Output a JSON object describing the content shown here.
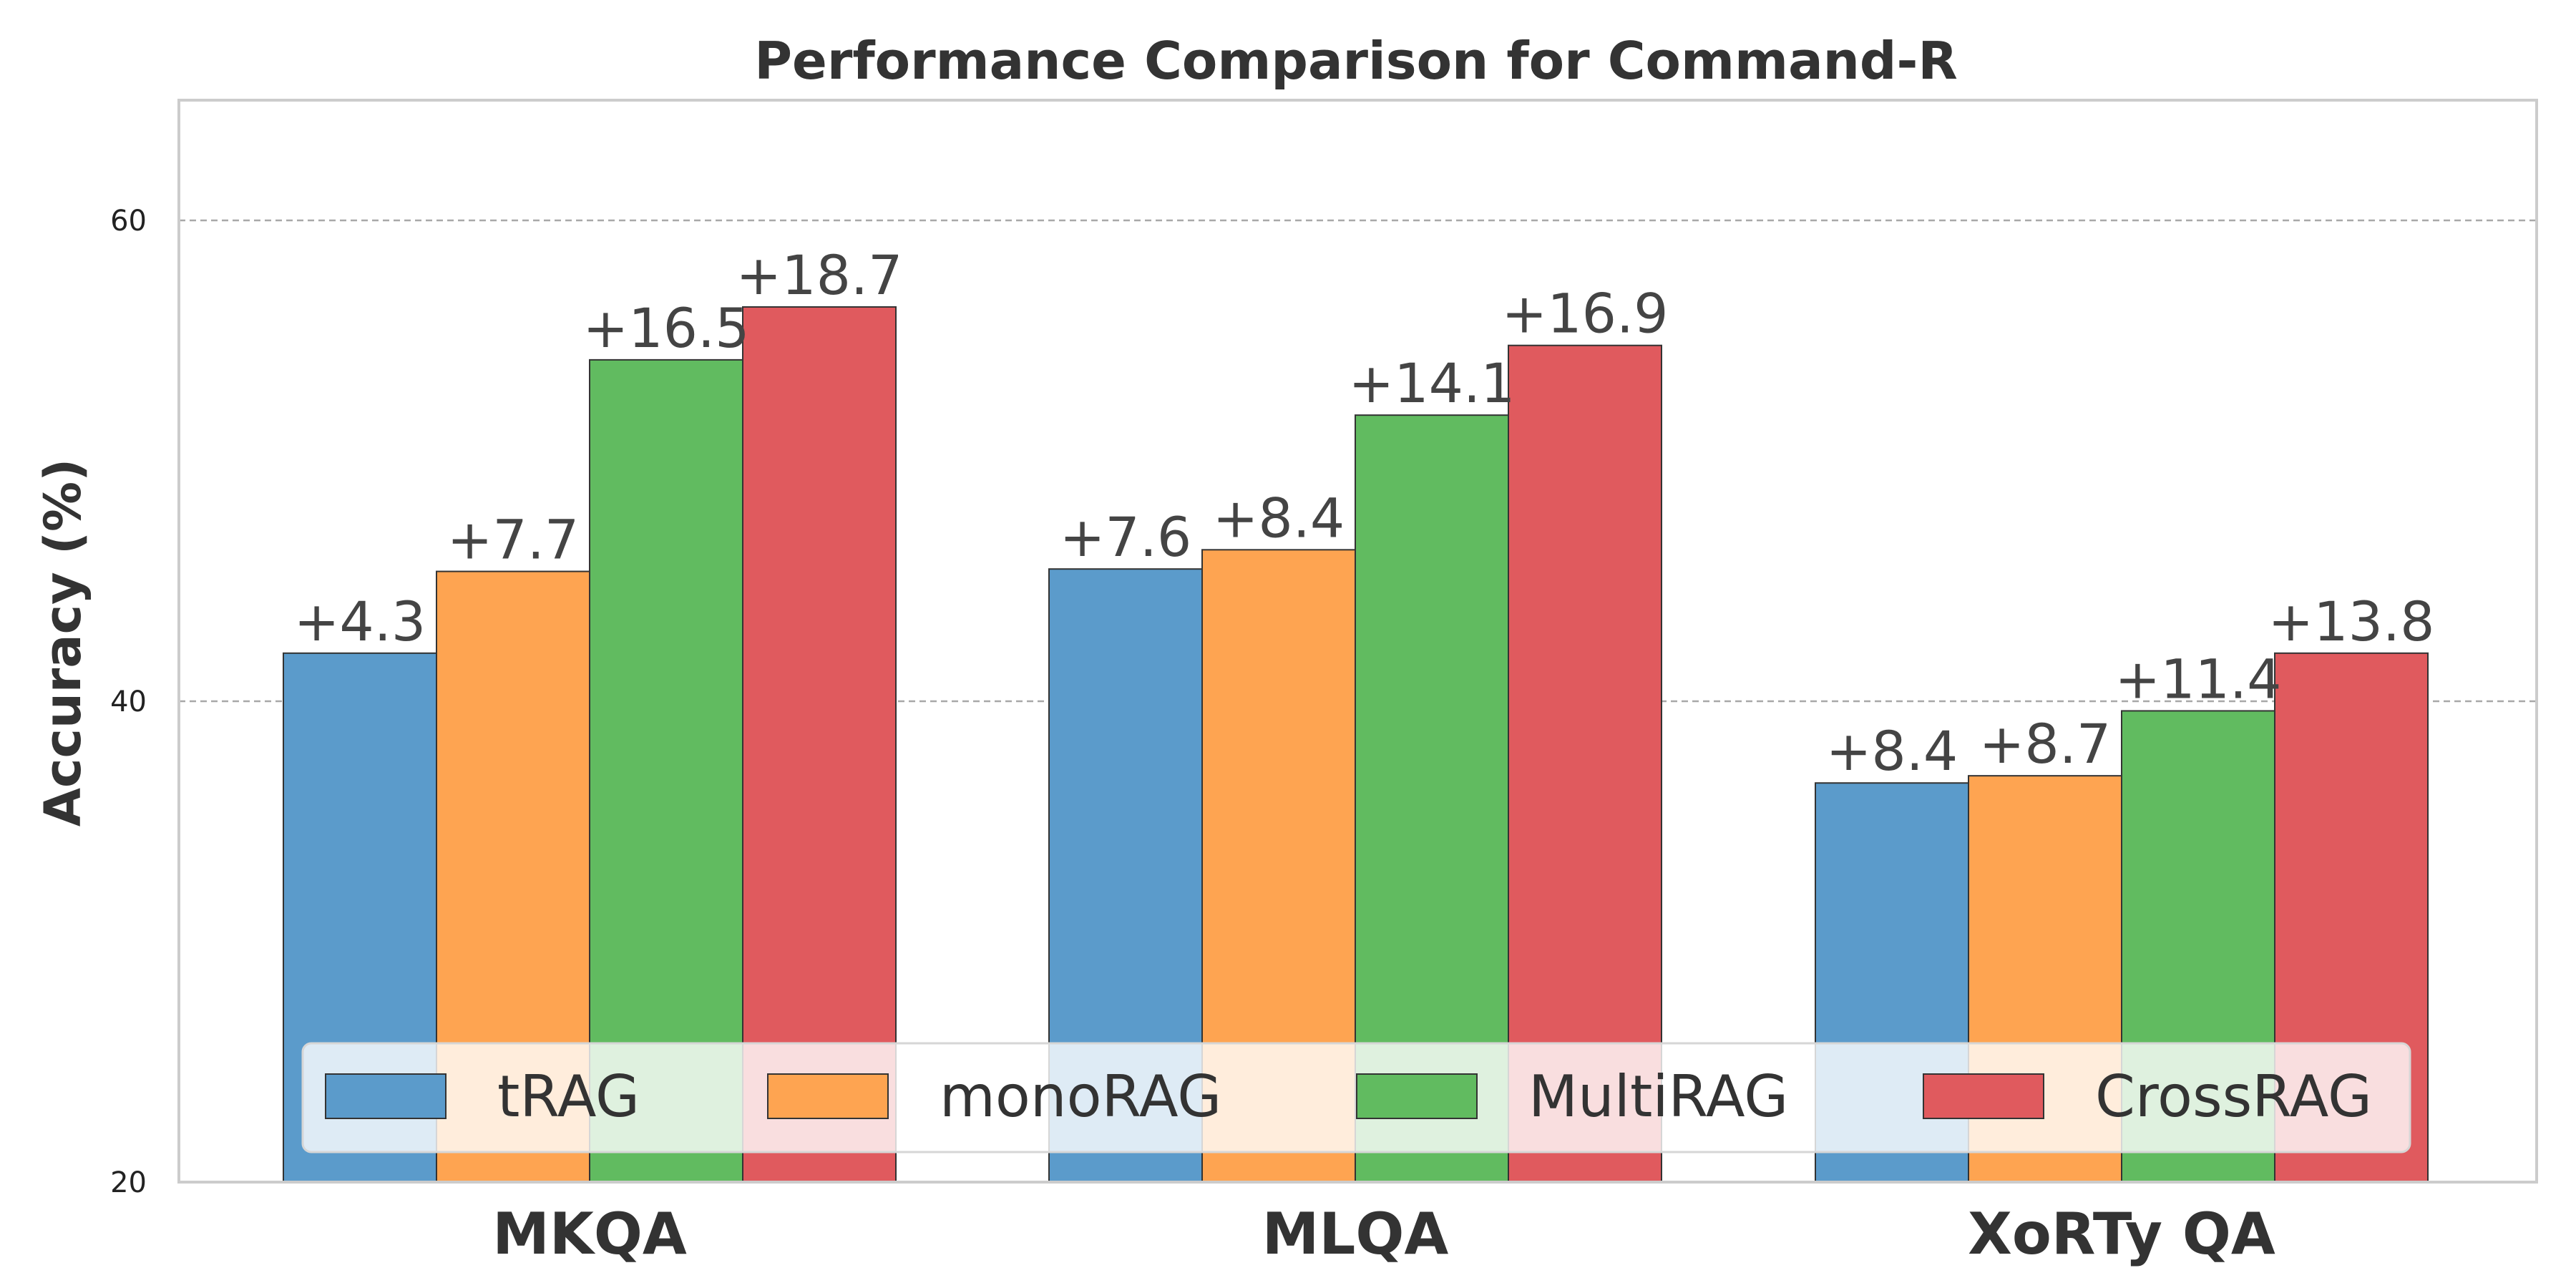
{
  "chart_data": {
    "type": "bar",
    "title": "Performance Comparison for Command-R",
    "xlabel": "",
    "ylabel": "Accuracy (%)",
    "categories": [
      "MKQA",
      "MLQA",
      "XoRTy QA"
    ],
    "ylim": [
      20,
      65
    ],
    "yticks": [
      20,
      40,
      60
    ],
    "grid": true,
    "legend_position": "lower-center",
    "series": [
      {
        "name": "tRAG",
        "color": "#5b9bcb",
        "values": [
          42.0,
          45.5,
          36.6
        ],
        "labels": [
          "+4.3",
          "+7.6",
          "+8.4"
        ]
      },
      {
        "name": "monoRAG",
        "color": "#fea451",
        "values": [
          45.4,
          46.3,
          36.9
        ],
        "labels": [
          "+7.7",
          "+8.4",
          "+8.7"
        ]
      },
      {
        "name": "MultiRAG",
        "color": "#61bb60",
        "values": [
          54.2,
          51.9,
          39.6
        ],
        "labels": [
          "+16.5",
          "+14.1",
          "+11.4"
        ]
      },
      {
        "name": "CrossRAG",
        "color": "#e05a5e",
        "values": [
          56.4,
          54.8,
          42.0
        ],
        "labels": [
          "+18.7",
          "+16.9",
          "+13.8"
        ]
      }
    ]
  }
}
